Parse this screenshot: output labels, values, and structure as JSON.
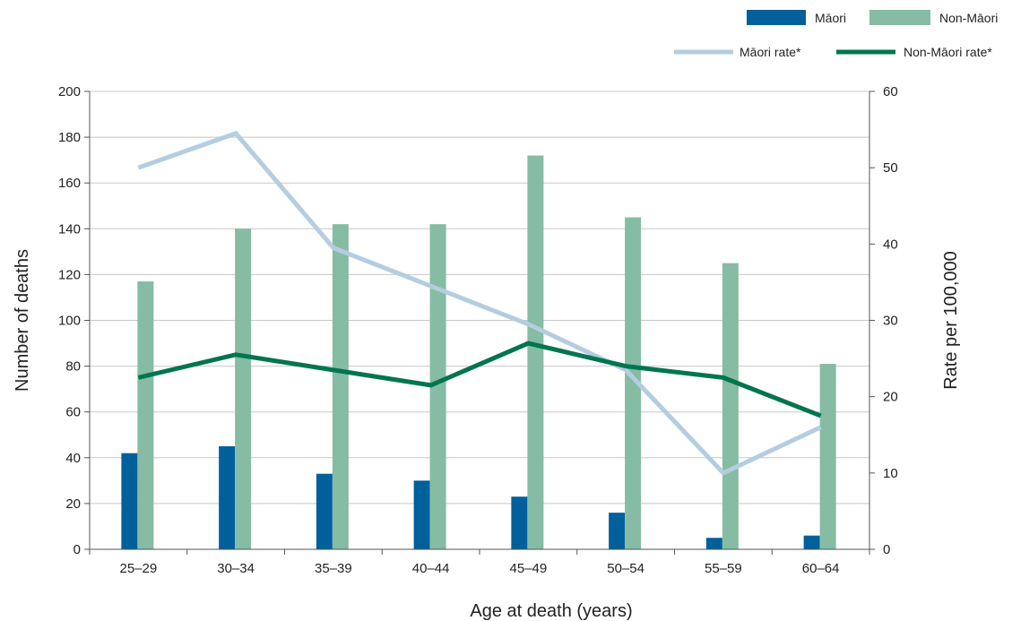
{
  "chart_data": {
    "type": "bar",
    "categories": [
      "25–29",
      "30–34",
      "35–39",
      "40–44",
      "45–49",
      "50–54",
      "55–59",
      "60–64"
    ],
    "series": [
      {
        "name": "Māori",
        "kind": "bar",
        "axis": "left",
        "color": "#00609c",
        "values": [
          42,
          45,
          33,
          30,
          23,
          16,
          5,
          6
        ]
      },
      {
        "name": "Non-Māori",
        "kind": "bar",
        "axis": "left",
        "color": "#85bca3",
        "values": [
          117,
          140,
          142,
          142,
          172,
          145,
          125,
          81
        ]
      },
      {
        "name": "Māori rate*",
        "kind": "line",
        "axis": "right",
        "color": "#b4cde0",
        "values": [
          50,
          54.5,
          39.5,
          34.5,
          29.5,
          23.5,
          10,
          16
        ]
      },
      {
        "name": "Non-Māori rate*",
        "kind": "line",
        "axis": "right",
        "color": "#007550",
        "values": [
          22.5,
          25.5,
          23.5,
          21.5,
          27,
          24,
          22.5,
          17.5
        ]
      }
    ],
    "xlabel": "Age at death (years)",
    "ylabel": "Number of deaths",
    "y2label": "Rate per 100,000",
    "ylim": [
      0,
      200
    ],
    "y2lim": [
      0,
      60
    ],
    "yticks": [
      0,
      20,
      40,
      60,
      80,
      100,
      120,
      140,
      160,
      180,
      200
    ],
    "y2ticks": [
      0,
      10,
      20,
      30,
      40,
      50,
      60
    ],
    "grid": true,
    "legend": "top-right"
  }
}
